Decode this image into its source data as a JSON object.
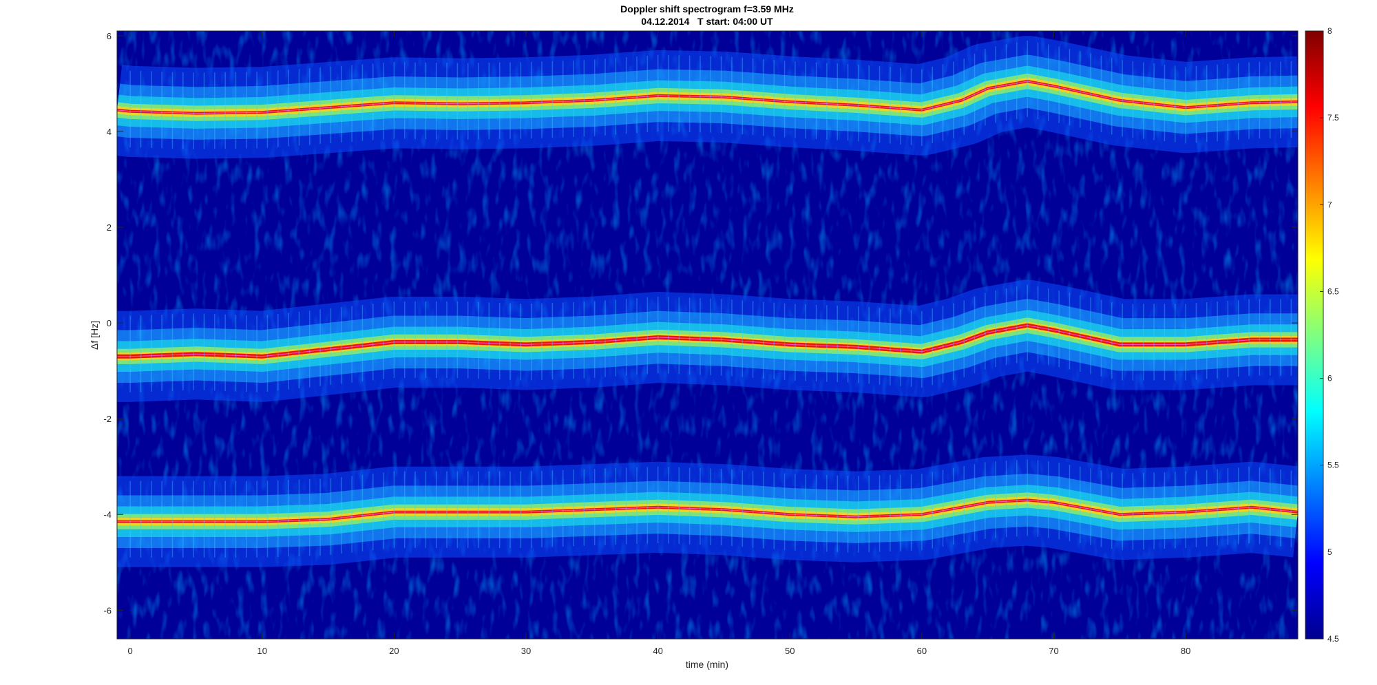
{
  "chart_data": {
    "type": "heatmap",
    "title": "Doppler shift spectrogram f=3.59 MHz",
    "subtitle": "04.12.2014   T start: 04:00 UT",
    "xlabel": "time (min)",
    "ylabel": "Δf [Hz]",
    "xlim": [
      -1,
      88.5
    ],
    "ylim": [
      -6.6,
      6.1
    ],
    "x_ticks": [
      0,
      10,
      20,
      30,
      40,
      50,
      60,
      70,
      80
    ],
    "y_ticks": [
      -6,
      -4,
      -2,
      0,
      2,
      4,
      6
    ],
    "grid": false,
    "colormap": "jet",
    "colorbar": {
      "min": 4.5,
      "max": 8,
      "ticks": [
        4.5,
        5,
        5.5,
        6,
        6.5,
        7,
        7.5,
        8
      ],
      "tick_labels": [
        "4.5",
        "5",
        "5.5",
        "6",
        "6.5",
        "7",
        "7.5",
        "8"
      ]
    },
    "background_level": 4.8,
    "series": [
      {
        "x": [
          -1,
          0,
          5,
          10,
          15,
          20,
          25,
          30,
          35,
          40,
          45,
          50,
          55,
          60,
          63,
          65,
          68,
          70,
          75,
          80,
          85,
          88.5
        ],
        "y": [
          4.45,
          4.42,
          4.38,
          4.4,
          4.5,
          4.6,
          4.58,
          4.6,
          4.65,
          4.75,
          4.72,
          4.62,
          4.55,
          4.45,
          4.65,
          4.9,
          5.05,
          4.95,
          4.65,
          4.5,
          4.6,
          4.62
        ]
      },
      {
        "x": [
          -1,
          0,
          5,
          10,
          15,
          20,
          25,
          30,
          35,
          40,
          45,
          50,
          55,
          60,
          63,
          65,
          68,
          70,
          75,
          80,
          85,
          88.5
        ],
        "y": [
          -0.7,
          -0.7,
          -0.65,
          -0.7,
          -0.55,
          -0.4,
          -0.4,
          -0.45,
          -0.4,
          -0.3,
          -0.35,
          -0.45,
          -0.5,
          -0.6,
          -0.4,
          -0.2,
          -0.05,
          -0.15,
          -0.45,
          -0.45,
          -0.35,
          -0.35
        ]
      },
      {
        "x": [
          -1,
          0,
          5,
          10,
          15,
          20,
          25,
          30,
          35,
          40,
          45,
          50,
          55,
          60,
          63,
          65,
          68,
          70,
          75,
          80,
          85,
          88.5
        ],
        "y": [
          -4.15,
          -4.15,
          -4.15,
          -4.15,
          -4.1,
          -3.95,
          -3.95,
          -3.95,
          -3.9,
          -3.85,
          -3.9,
          -4.0,
          -4.05,
          -4.0,
          -3.85,
          -3.75,
          -3.7,
          -3.75,
          -4.0,
          -3.95,
          -3.85,
          -3.95
        ]
      }
    ]
  }
}
